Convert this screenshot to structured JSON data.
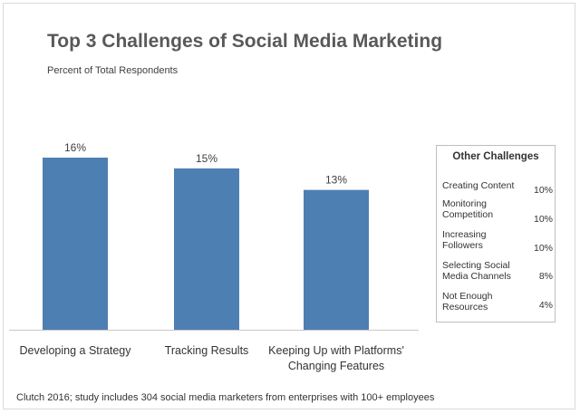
{
  "title": "Top 3 Challenges of Social Media Marketing",
  "subtitle": "Percent of Total Respondents",
  "chart_data": {
    "type": "bar",
    "categories": [
      "Developing a Strategy",
      "Tracking Results",
      "Keeping Up with Platforms' Changing Features"
    ],
    "category_lines": [
      [
        "Developing a Strategy"
      ],
      [
        "Tracking Results"
      ],
      [
        "Keeping Up with Platforms'",
        "Changing Features"
      ]
    ],
    "values": [
      16,
      15,
      13
    ],
    "value_labels": [
      "16%",
      "15%",
      "13%"
    ],
    "unit": "%",
    "ylim": [
      0,
      16
    ],
    "bar_color": "#4e7fb3",
    "grid": false,
    "legend": "none"
  },
  "other_challenges": {
    "title": "Other Challenges",
    "items": [
      {
        "label": "Creating Content",
        "value": "10%"
      },
      {
        "label": "Monitoring Competition",
        "value": "10%"
      },
      {
        "label": "Increasing Followers",
        "value": "10%"
      },
      {
        "label": "Selecting Social Media Channels",
        "value": "8%"
      },
      {
        "label": "Not Enough Resources",
        "value": "4%"
      }
    ]
  },
  "footer": "Clutch 2016; study includes 304 social media marketers from enterprises with 100+ employees"
}
